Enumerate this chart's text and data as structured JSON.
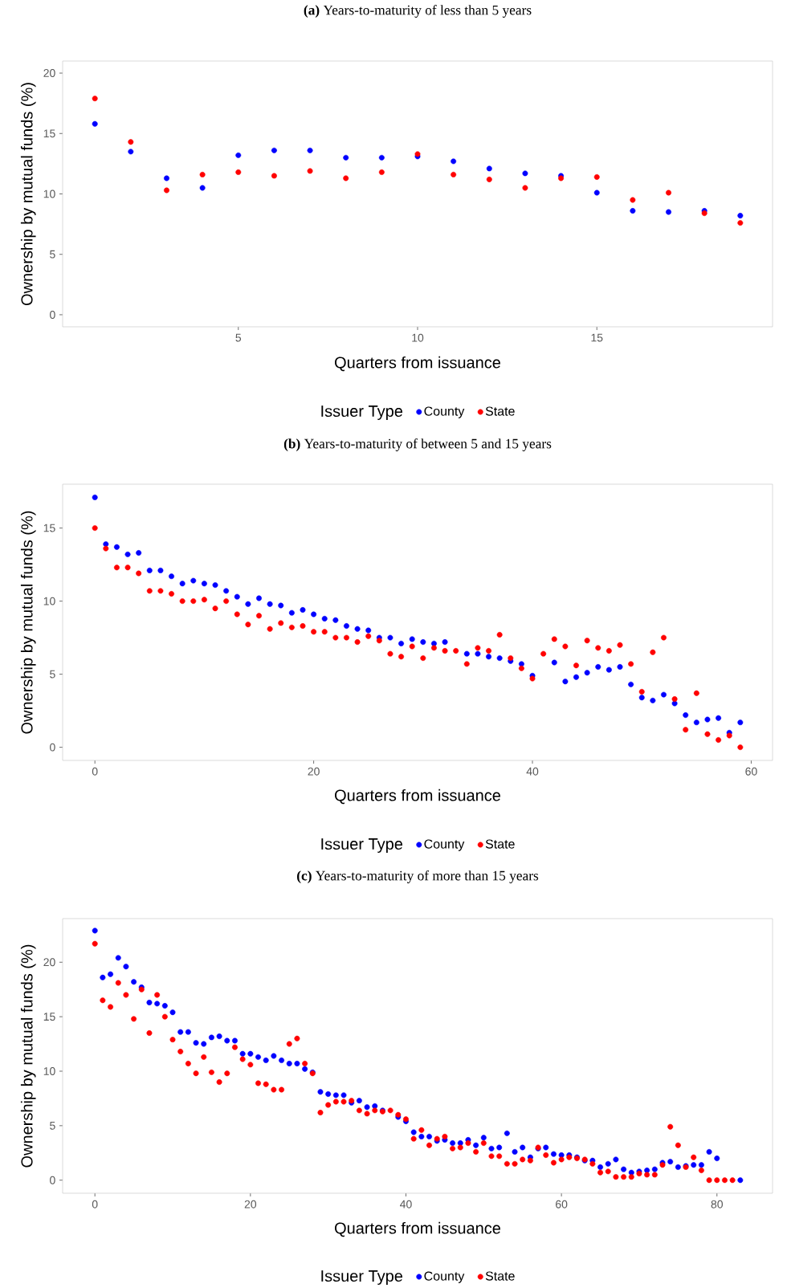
{
  "chart_data": [
    {
      "type": "scatter",
      "title": "**(a)** Years-to-maturity of less than 5 years",
      "xlabel": "Quarters from issuance",
      "ylabel": "Ownership by mutual funds (%)",
      "legend_title": "Issuer Type",
      "legend": "bottom",
      "marker": "circle",
      "x": [
        1,
        2,
        3,
        4,
        5,
        6,
        7,
        8,
        9,
        10,
        11,
        12,
        13,
        14,
        15,
        16,
        17,
        18,
        19
      ],
      "xlim": [
        0.1,
        19.9
      ],
      "ylim": [
        -1,
        21
      ],
      "xticks": [
        5,
        10,
        15
      ],
      "yticks": [
        0,
        5,
        10,
        15,
        20
      ],
      "series": [
        {
          "name": "County",
          "color": "#0000ff",
          "values": [
            15.8,
            13.5,
            11.3,
            10.5,
            13.2,
            13.6,
            13.6,
            13.0,
            13.0,
            13.1,
            12.7,
            12.1,
            11.7,
            11.5,
            10.1,
            8.6,
            8.5,
            8.6,
            8.2
          ]
        },
        {
          "name": "State",
          "color": "#ff0000",
          "values": [
            17.9,
            14.3,
            10.3,
            11.6,
            11.8,
            11.5,
            11.9,
            11.3,
            11.8,
            13.3,
            11.6,
            11.2,
            10.5,
            11.3,
            11.4,
            9.5,
            10.1,
            8.4,
            7.6
          ]
        }
      ]
    },
    {
      "type": "scatter",
      "title": "**(b)** Years-to-maturity of between 5 and 15 years",
      "xlabel": "Quarters from issuance",
      "ylabel": "Ownership by mutual funds (%)",
      "legend_title": "Issuer Type",
      "legend": "bottom",
      "marker": "circle",
      "x": [
        0,
        1,
        2,
        3,
        4,
        5,
        6,
        7,
        8,
        9,
        10,
        11,
        12,
        13,
        14,
        15,
        16,
        17,
        18,
        19,
        20,
        21,
        22,
        23,
        24,
        25,
        26,
        27,
        28,
        29,
        30,
        31,
        32,
        33,
        34,
        35,
        36,
        37,
        38,
        39,
        40,
        41,
        42,
        43,
        44,
        45,
        46,
        47,
        48,
        49,
        50,
        51,
        52,
        53,
        54,
        55,
        56,
        57,
        58,
        59
      ],
      "xlim": [
        -2.95,
        61.95
      ],
      "ylim": [
        -0.9,
        18
      ],
      "xticks": [
        0,
        20,
        40,
        60
      ],
      "yticks": [
        0,
        5,
        10,
        15
      ],
      "series": [
        {
          "name": "County",
          "color": "#0000ff",
          "values": [
            17.1,
            13.9,
            13.7,
            13.2,
            13.3,
            12.1,
            12.1,
            11.7,
            11.2,
            11.4,
            11.2,
            11.1,
            10.7,
            10.3,
            9.8,
            10.2,
            9.8,
            9.7,
            9.2,
            9.4,
            9.1,
            8.8,
            8.7,
            8.3,
            8.1,
            8.0,
            7.5,
            7.5,
            7.1,
            7.4,
            7.2,
            7.1,
            7.2,
            null,
            6.4,
            6.4,
            6.2,
            6.1,
            5.9,
            5.7,
            4.9,
            null,
            5.8,
            4.5,
            4.8,
            5.1,
            5.5,
            5.3,
            5.5,
            4.3,
            3.4,
            3.2,
            3.6,
            3.0,
            2.2,
            1.7,
            1.9,
            2.0,
            1.0,
            1.7
          ]
        },
        {
          "name": "State",
          "color": "#ff0000",
          "values": [
            15.0,
            13.6,
            12.3,
            12.3,
            11.9,
            10.7,
            10.7,
            10.5,
            10.0,
            10.0,
            10.1,
            9.5,
            10.0,
            9.1,
            8.4,
            9.0,
            8.1,
            8.5,
            8.2,
            8.3,
            7.9,
            7.9,
            7.5,
            7.5,
            7.2,
            7.6,
            7.3,
            6.4,
            6.2,
            6.9,
            6.1,
            6.8,
            6.6,
            6.6,
            5.7,
            6.8,
            6.6,
            7.7,
            6.1,
            5.4,
            4.7,
            6.4,
            7.4,
            6.9,
            5.6,
            7.3,
            6.8,
            6.6,
            7.0,
            5.7,
            3.8,
            6.5,
            7.5,
            3.3,
            1.2,
            3.7,
            0.9,
            0.5,
            0.8,
            0.0
          ]
        }
      ]
    },
    {
      "type": "scatter",
      "title": "**(c)** Years-to-maturity of more than 15 years",
      "xlabel": "Quarters from issuance",
      "ylabel": "Ownership by mutual funds (%)",
      "legend_title": "Issuer Type",
      "legend": "bottom",
      "marker": "circle",
      "x": [
        0,
        1,
        2,
        3,
        4,
        5,
        6,
        7,
        8,
        9,
        10,
        11,
        12,
        13,
        14,
        15,
        16,
        17,
        18,
        19,
        20,
        21,
        22,
        23,
        24,
        25,
        26,
        27,
        28,
        29,
        30,
        31,
        32,
        33,
        34,
        35,
        36,
        37,
        38,
        39,
        40,
        41,
        42,
        43,
        44,
        45,
        46,
        47,
        48,
        49,
        50,
        51,
        52,
        53,
        54,
        55,
        56,
        57,
        58,
        59,
        60,
        61,
        62,
        63,
        64,
        65,
        66,
        67,
        68,
        69,
        70,
        71,
        72,
        73,
        74,
        75,
        76,
        77,
        78,
        79,
        80,
        81,
        82,
        83
      ],
      "xlim": [
        -4.15,
        87.15
      ],
      "ylim": [
        -1.2,
        24
      ],
      "xticks": [
        0,
        20,
        40,
        60,
        80
      ],
      "yticks": [
        0,
        5,
        10,
        15,
        20
      ],
      "series": [
        {
          "name": "County",
          "color": "#0000ff",
          "values": [
            22.9,
            18.6,
            18.9,
            20.4,
            19.6,
            18.2,
            17.7,
            16.3,
            16.2,
            16.0,
            15.4,
            13.6,
            13.6,
            12.6,
            12.5,
            13.1,
            13.2,
            12.8,
            12.8,
            11.6,
            11.6,
            11.3,
            11.0,
            11.4,
            11.0,
            10.7,
            10.7,
            10.2,
            9.9,
            8.1,
            7.9,
            7.8,
            7.8,
            7.1,
            7.3,
            6.7,
            6.8,
            6.4,
            null,
            5.8,
            5.4,
            4.4,
            4.0,
            4.0,
            3.6,
            3.7,
            3.4,
            3.4,
            3.7,
            3.2,
            3.9,
            2.9,
            3.0,
            4.3,
            2.6,
            3.0,
            2.1,
            2.9,
            3.0,
            2.4,
            2.3,
            2.3,
            2.1,
            1.8,
            1.8,
            1.2,
            1.5,
            1.9,
            1.0,
            0.7,
            0.8,
            0.9,
            1.0,
            1.6,
            1.7,
            1.2,
            1.3,
            1.4,
            1.4,
            2.6,
            2.0,
            null,
            null,
            0.0
          ]
        },
        {
          "name": "State",
          "color": "#ff0000",
          "values": [
            21.7,
            16.5,
            15.9,
            18.1,
            17.0,
            14.8,
            17.5,
            13.5,
            17.0,
            15.0,
            12.9,
            11.8,
            10.7,
            9.8,
            11.3,
            9.9,
            9.0,
            9.8,
            12.2,
            11.1,
            10.6,
            8.9,
            8.8,
            8.3,
            8.3,
            12.5,
            13.0,
            10.7,
            9.8,
            6.2,
            6.9,
            7.2,
            7.2,
            7.3,
            6.4,
            6.1,
            6.4,
            6.3,
            6.4,
            6.0,
            5.6,
            3.8,
            4.6,
            3.2,
            3.8,
            4.0,
            2.9,
            3.0,
            3.4,
            2.6,
            3.4,
            2.2,
            2.2,
            1.5,
            1.5,
            1.9,
            1.8,
            3.0,
            2.3,
            1.6,
            1.9,
            2.1,
            2.0,
            1.9,
            1.5,
            0.7,
            0.8,
            0.3,
            0.3,
            0.3,
            0.6,
            0.5,
            0.5,
            1.4,
            4.9,
            3.2,
            1.2,
            2.1,
            0.9,
            0.0,
            0.0,
            0.0,
            0.0,
            null
          ]
        }
      ]
    }
  ]
}
